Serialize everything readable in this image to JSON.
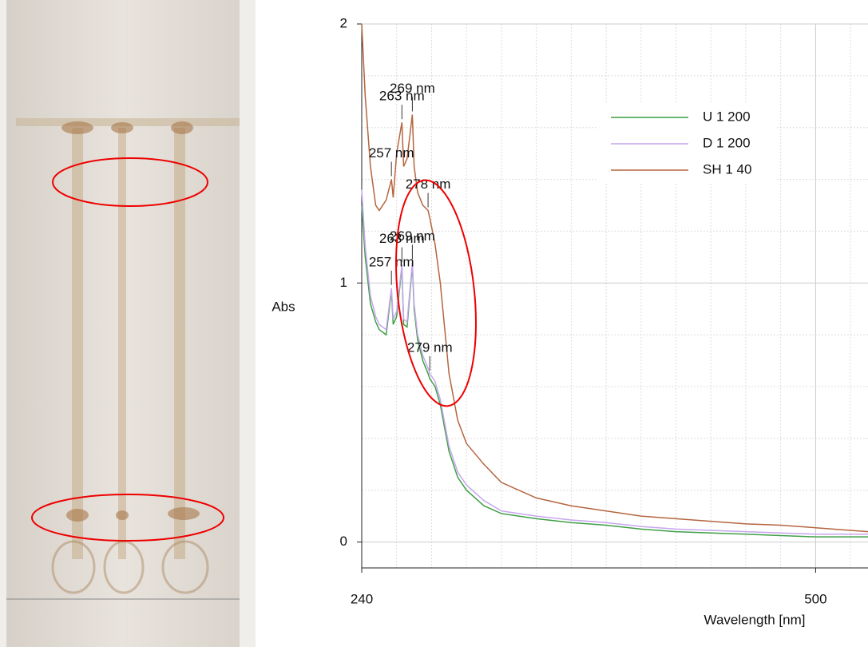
{
  "chart_data": {
    "type": "line",
    "xlabel": "Wavelength [nm]",
    "ylabel": "Abs",
    "xlim": [
      240,
      530
    ],
    "ylim": [
      -0.1,
      2
    ],
    "xticks": [
      240,
      500
    ],
    "yticks": [
      0,
      1,
      2
    ],
    "minor_xticks": [
      260,
      280,
      300,
      320,
      340,
      360,
      380,
      400,
      420,
      440,
      460,
      480,
      520
    ],
    "minor_yticks": [
      0.2,
      0.4,
      0.6,
      0.8,
      1.2,
      1.4,
      1.6,
      1.8
    ],
    "grid": true,
    "legend": "upper right",
    "x": [
      240,
      242,
      245,
      248,
      250,
      254,
      257,
      258,
      260,
      263,
      264,
      266,
      269,
      270,
      272,
      275,
      278,
      279,
      282,
      285,
      290,
      295,
      300,
      310,
      320,
      340,
      360,
      380,
      400,
      420,
      440,
      460,
      480,
      500,
      520,
      530
    ],
    "series": [
      {
        "name": "U 1 200",
        "color": "#3f9f45",
        "values": [
          1.3,
          1.1,
          0.92,
          0.85,
          0.82,
          0.8,
          0.97,
          0.84,
          0.87,
          1.06,
          0.84,
          0.83,
          1.07,
          0.9,
          0.78,
          0.7,
          0.65,
          0.63,
          0.6,
          0.53,
          0.35,
          0.25,
          0.2,
          0.14,
          0.11,
          0.09,
          0.075,
          0.065,
          0.05,
          0.04,
          0.035,
          0.03,
          0.025,
          0.02,
          0.02,
          0.02
        ]
      },
      {
        "name": "D 1 200",
        "color": "#c6a6ee",
        "values": [
          1.36,
          1.14,
          0.95,
          0.87,
          0.84,
          0.82,
          0.98,
          0.86,
          0.89,
          1.07,
          0.86,
          0.85,
          1.08,
          0.92,
          0.8,
          0.72,
          0.67,
          0.65,
          0.62,
          0.55,
          0.37,
          0.27,
          0.22,
          0.16,
          0.12,
          0.1,
          0.085,
          0.075,
          0.06,
          0.05,
          0.045,
          0.04,
          0.035,
          0.03,
          0.03,
          0.03
        ]
      },
      {
        "name": "SH 1 40",
        "color": "#b5653f",
        "values": [
          2.0,
          1.72,
          1.45,
          1.3,
          1.28,
          1.32,
          1.4,
          1.33,
          1.5,
          1.62,
          1.45,
          1.48,
          1.65,
          1.45,
          1.35,
          1.3,
          1.28,
          1.25,
          1.15,
          1.0,
          0.65,
          0.47,
          0.38,
          0.3,
          0.23,
          0.17,
          0.14,
          0.12,
          0.1,
          0.09,
          0.08,
          0.07,
          0.065,
          0.055,
          0.045,
          0.04
        ]
      }
    ],
    "annotations": [
      {
        "text": "257 nm",
        "x": 257,
        "y": 1.4
      },
      {
        "text": "263 nm",
        "x": 263,
        "y": 1.62
      },
      {
        "text": "269 nm",
        "x": 269,
        "y": 1.65
      },
      {
        "text": "278 nm",
        "x": 278,
        "y": 1.28
      },
      {
        "text": "257 nm",
        "x": 257,
        "y": 0.98
      },
      {
        "text": "263 nm",
        "x": 263,
        "y": 1.07
      },
      {
        "text": "269 nm",
        "x": 269,
        "y": 1.08
      },
      {
        "text": "279 nm",
        "x": 279,
        "y": 0.65
      }
    ]
  }
}
